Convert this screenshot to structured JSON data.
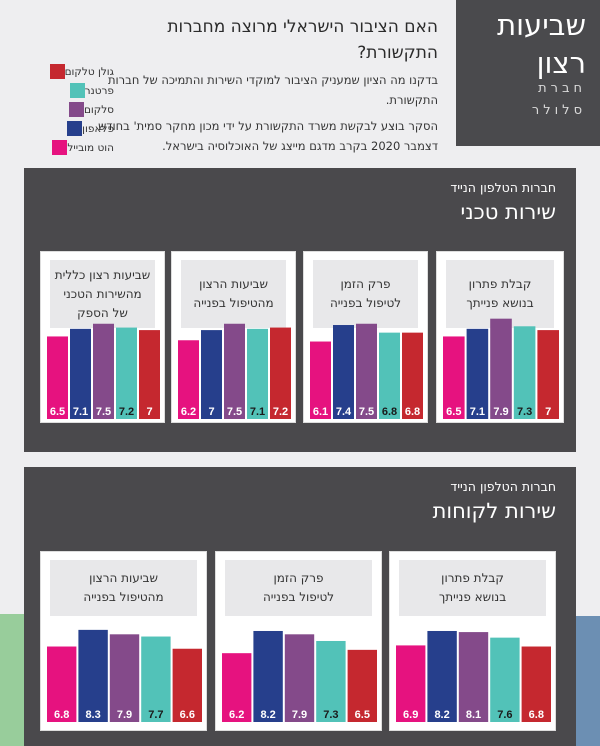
{
  "hero": {
    "title": "שביעות רצון",
    "subtitle": "חברת סלולר"
  },
  "intro": {
    "heading": "האם הציבור הישראלי מרוצה מחברות התקשורת?",
    "paragraph1": "בדקנו מה הציון שמעניק הציבור למוקדי השירות והתמיכה של חברות התקשורת.",
    "paragraph2": "הסקר בוצע לבקשת משרד התקשורת על ידי מכון מחקר סמית' בחודש דצמבר 2020 בקרב מדגם מייצג של האוכלוסיה בישראל."
  },
  "legend": [
    {
      "label": "גולן טלקום",
      "color": "#c5282f"
    },
    {
      "label": "פרטנר",
      "color": "#52c2b8"
    },
    {
      "label": "סלקום",
      "color": "#844a8a"
    },
    {
      "label": "פלאפון",
      "color": "#263f8c"
    },
    {
      "label": "הוט מובייל",
      "color": "#e6127f"
    }
  ],
  "panels": [
    {
      "subtitle": "חברות הטלפון הנייד",
      "title": "שירות טכני"
    },
    {
      "subtitle": "חברות הטלפון הנייד",
      "title": "שירות לקוחות"
    }
  ],
  "chart_data": [
    {
      "type": "bar",
      "title": "קבלת פתרון\nבנושא פנייתך",
      "section": "שירות טכני",
      "categories": [
        "הוט מובייל",
        "פלאפון",
        "סלקום",
        "פרטנר",
        "גולן טלקום"
      ],
      "values": [
        6.5,
        7.1,
        7.9,
        7.3,
        7
      ]
    },
    {
      "type": "bar",
      "title": "פרק הזמן\nלטיפול בפנייה",
      "section": "שירות טכני",
      "categories": [
        "הוט מובייל",
        "פלאפון",
        "סלקום",
        "פרטנר",
        "גולן טלקום"
      ],
      "values": [
        6.1,
        7.4,
        7.5,
        6.8,
        6.8
      ]
    },
    {
      "type": "bar",
      "title": "שביעות הרצון\nמהטיפול בפנייה",
      "section": "שירות טכני",
      "categories": [
        "הוט מובייל",
        "פלאפון",
        "סלקום",
        "פרטנר",
        "גולן טלקום"
      ],
      "values": [
        6.2,
        7,
        7.5,
        7.1,
        7.2
      ]
    },
    {
      "type": "bar",
      "title": "שביעות רצון כללית\nמהשירות הטכני\nשל הספק",
      "section": "שירות טכני",
      "categories": [
        "הוט מובייל",
        "פלאפון",
        "סלקום",
        "פרטנר",
        "גולן טלקום"
      ],
      "values": [
        6.5,
        7.1,
        7.5,
        7.2,
        7
      ]
    },
    {
      "type": "bar",
      "title": "קבלת פתרון\nבנושא פנייתך",
      "section": "שירות לקוחות",
      "categories": [
        "הוט מובייל",
        "פלאפון",
        "סלקום",
        "פרטנר",
        "גולן טלקום"
      ],
      "values": [
        6.9,
        8.2,
        8.1,
        7.6,
        6.8
      ]
    },
    {
      "type": "bar",
      "title": "פרק הזמן\nלטיפול בפנייה",
      "section": "שירות לקוחות",
      "categories": [
        "הוט מובייל",
        "פלאפון",
        "סלקום",
        "פרטנר",
        "גולן טלקום"
      ],
      "values": [
        6.2,
        8.2,
        7.9,
        7.3,
        6.5
      ]
    },
    {
      "type": "bar",
      "title": "שביעות הרצון\nמהטיפול בפנייה",
      "section": "שירות לקוחות",
      "categories": [
        "הוט מובייל",
        "פלאפון",
        "סלקום",
        "פרטנר",
        "גולן טלקום"
      ],
      "values": [
        6.8,
        8.3,
        7.9,
        7.7,
        6.6
      ]
    }
  ],
  "bar_colors": [
    "#e6127f",
    "#263f8c",
    "#844a8a",
    "#52c2b8",
    "#c5282f"
  ],
  "label_colors": [
    "#ffffff",
    "#ffffff",
    "#ffffff",
    "#1a1a1a",
    "#ffffff"
  ]
}
